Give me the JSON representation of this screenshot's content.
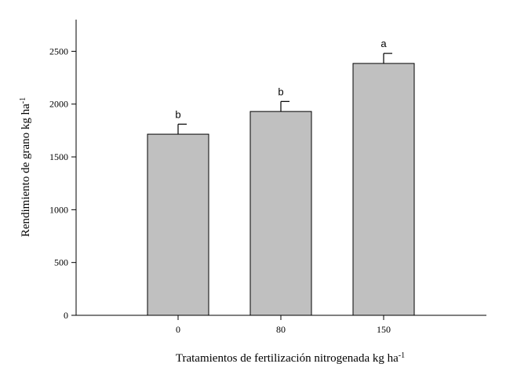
{
  "chart_data": {
    "type": "bar",
    "categories": [
      "0",
      "80",
      "150"
    ],
    "values": [
      1715,
      1930,
      2385
    ],
    "error_upper": [
      1810,
      2025,
      2480
    ],
    "significance_letters": [
      "b",
      "b",
      "a"
    ],
    "xlabel": "Tratamientos de fertilización nitrogenada kg ha",
    "xlabel_sup": "-1",
    "ylabel": "Rendimiento de grano kg ha",
    "ylabel_sup": "-1",
    "ylim": [
      0,
      2800
    ],
    "yticks": [
      0,
      500,
      1000,
      1500,
      2000,
      2500
    ],
    "bar_color": "#c0c0c0",
    "grid": false,
    "legend": "none"
  }
}
